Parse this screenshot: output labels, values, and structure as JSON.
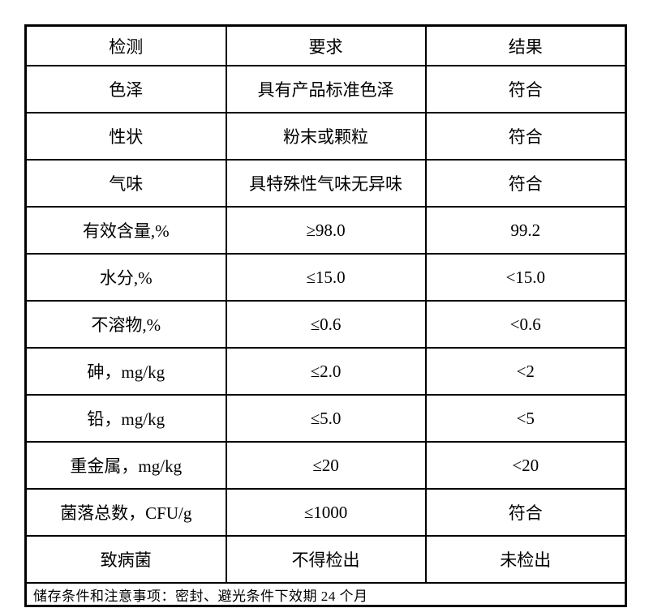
{
  "table": {
    "headers": [
      "检测",
      "要求",
      "结果"
    ],
    "rows": [
      {
        "item": "色泽",
        "requirement": "具有产品标准色泽",
        "result": "符合"
      },
      {
        "item": "性状",
        "requirement": "粉末或颗粒",
        "result": "符合"
      },
      {
        "item": "气味",
        "requirement": "具特殊性气味无异味",
        "result": "符合"
      },
      {
        "item": "有效含量,%",
        "requirement": "≥98.0",
        "result": "99.2"
      },
      {
        "item": "水分,%",
        "requirement": "≤15.0",
        "result": "<15.0"
      },
      {
        "item": "不溶物,%",
        "requirement": "≤0.6",
        "result": "<0.6"
      },
      {
        "item": "砷，mg/kg",
        "requirement": "≤2.0",
        "result": "<2"
      },
      {
        "item": "铅，mg/kg",
        "requirement": "≤5.0",
        "result": "<5"
      },
      {
        "item": "重金属，mg/kg",
        "requirement": "≤20",
        "result": "<20"
      },
      {
        "item": "菌落总数，CFU/g",
        "requirement": "≤1000",
        "result": "符合"
      },
      {
        "item": "致病菌",
        "requirement": "不得检出",
        "result": "未检出"
      }
    ],
    "footer_note": "储存条件和注意事项：密封、避光条件下效期 24 个月"
  }
}
